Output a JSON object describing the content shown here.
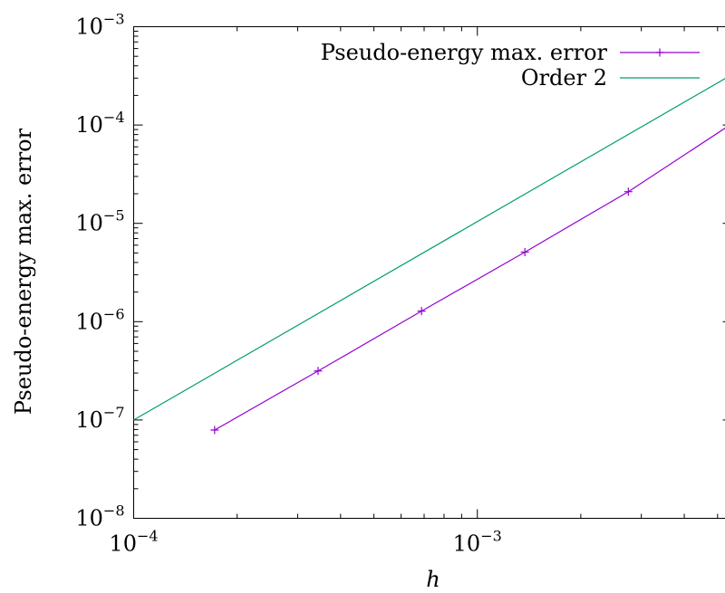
{
  "chart_data": {
    "type": "line",
    "title": "",
    "xlabel": "h",
    "ylabel": "Pseudo-energy max. error",
    "xscale": "log",
    "yscale": "log",
    "xlim": [
      0.0001,
      0.0055
    ],
    "ylim": [
      1e-08,
      0.001
    ],
    "grid": false,
    "legend_position": "top-right",
    "x_ticks": [
      {
        "value": 0.0001,
        "base": "10",
        "exp": "−4"
      },
      {
        "value": 0.001,
        "base": "10",
        "exp": "−3"
      }
    ],
    "y_ticks": [
      {
        "value": 1e-08,
        "base": "10",
        "exp": "−8"
      },
      {
        "value": 1e-07,
        "base": "10",
        "exp": "−7"
      },
      {
        "value": 1e-06,
        "base": "10",
        "exp": "−6"
      },
      {
        "value": 1e-05,
        "base": "10",
        "exp": "−5"
      },
      {
        "value": 0.0001,
        "base": "10",
        "exp": "−4"
      },
      {
        "value": 0.001,
        "base": "10",
        "exp": "−3"
      }
    ],
    "series": [
      {
        "name": "Pseudo-energy max. error",
        "color": "#9400d3",
        "marker": "plus",
        "x": [
          0.000172,
          0.000344,
          0.000688,
          0.001375,
          0.00275,
          0.0055
        ],
        "y": [
          7.9e-08,
          3.15e-07,
          1.28e-06,
          5.1e-06,
          2.1e-05,
          0.000103
        ]
      },
      {
        "name": "Order 2",
        "color": "#009e73",
        "marker": "none",
        "x": [
          0.0001,
          0.0055
        ],
        "y": [
          1e-07,
          0.000325
        ]
      }
    ]
  }
}
